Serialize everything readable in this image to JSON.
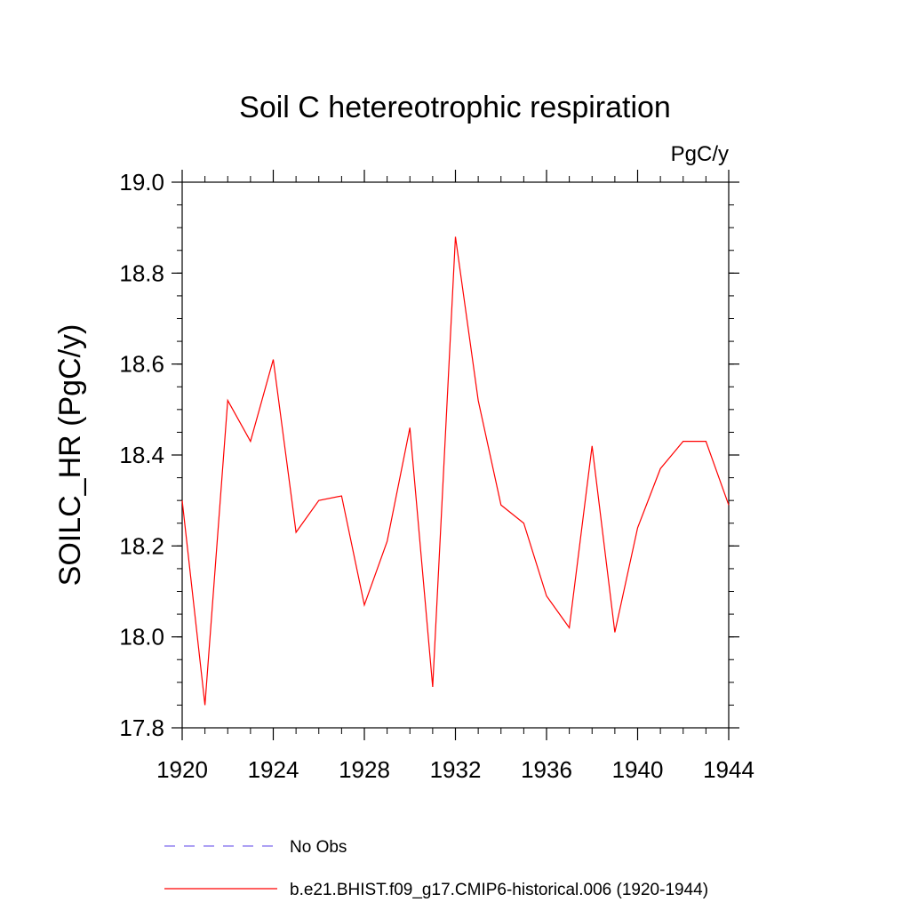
{
  "chart_data": {
    "type": "line",
    "title": "Soil C hetereotrophic respiration",
    "units_label": "PgC/y",
    "ylabel": "SOILC_HR  (PgC/y)",
    "xlabel": "",
    "xlim": [
      1920,
      1944
    ],
    "ylim": [
      17.8,
      19.0
    ],
    "x_ticks": [
      1920,
      1924,
      1928,
      1932,
      1936,
      1940,
      1944
    ],
    "x_tick_labels": [
      "1920",
      "1924",
      "1928",
      "1932",
      "1936",
      "1940",
      "1944"
    ],
    "y_ticks": [
      17.8,
      18.0,
      18.2,
      18.4,
      18.6,
      18.8,
      19.0
    ],
    "y_tick_labels": [
      "17.8",
      "18.0",
      "18.2",
      "18.4",
      "18.6",
      "18.8",
      "19.0"
    ],
    "grid": false,
    "legend_position": "bottom",
    "series": [
      {
        "name": "No Obs",
        "color": "#7b68ee",
        "style": "dashed",
        "x": [],
        "values": []
      },
      {
        "name": "b.e21.BHIST.f09_g17.CMIP6-historical.006 (1920-1944)",
        "color": "#ff0000",
        "style": "solid",
        "x": [
          1920,
          1921,
          1922,
          1923,
          1924,
          1925,
          1926,
          1927,
          1928,
          1929,
          1930,
          1931,
          1932,
          1933,
          1934,
          1935,
          1936,
          1937,
          1938,
          1939,
          1940,
          1941,
          1942,
          1943,
          1944
        ],
        "values": [
          18.3,
          17.85,
          18.52,
          18.43,
          18.61,
          18.23,
          18.3,
          18.31,
          18.07,
          18.21,
          18.46,
          17.89,
          18.88,
          18.52,
          18.29,
          18.25,
          18.09,
          18.02,
          18.42,
          18.01,
          18.24,
          18.37,
          18.43,
          18.43,
          18.29
        ]
      }
    ]
  }
}
